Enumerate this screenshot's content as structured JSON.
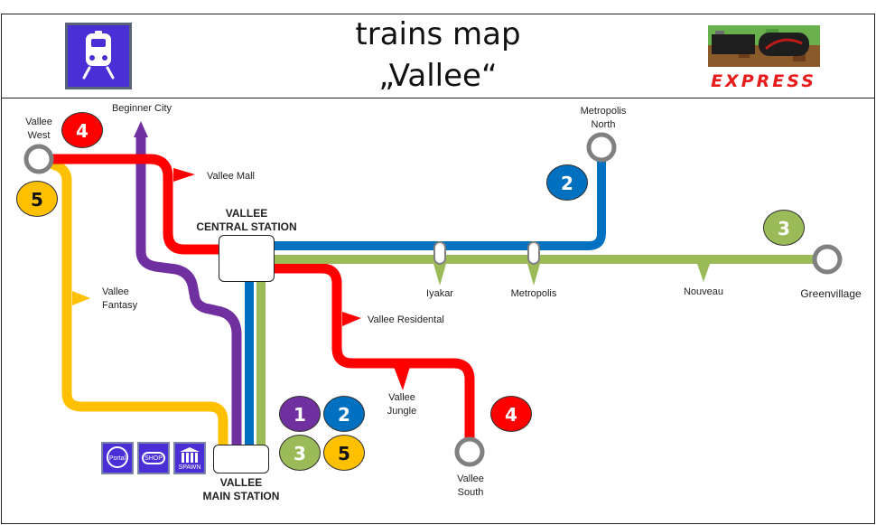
{
  "header": {
    "title_line1": "trains map",
    "title_line2": "„Vallee“",
    "brand_word": "EXPRESS"
  },
  "stations": {
    "vallee_west": "Vallee\nWest",
    "beginner_city": "Beginner City",
    "vallee_mall": "Vallee Mall",
    "central": "VALLEE\nCENTRAL STATION",
    "metropolis_north": "Metropolis\nNorth",
    "iyakar": "Iyakar",
    "metropolis": "Metropolis",
    "nouveau": "Nouveau",
    "greenvillage": "Greenvillage",
    "vallee_fantasy": "Vallee\nFantasy",
    "vallee_residental": "Vallee Residental",
    "vallee_jungle": "Vallee\nJungle",
    "vallee_south": "Vallee\nSouth",
    "main": "VALLEE\nMAIN STATION"
  },
  "badges": {
    "red_west": "4",
    "yellow_west": "5",
    "blue_north": "2",
    "green_east": "3",
    "red_south": "4",
    "main_purple": "1",
    "main_blue": "2",
    "main_green": "3",
    "main_yellow": "5"
  },
  "services": {
    "portal": "Portal",
    "shop": "SHOP",
    "spawn": "SPAWN"
  },
  "colors": {
    "red": "#ff0000",
    "blue": "#0070c0",
    "green": "#9bbb59",
    "yellow": "#ffc000",
    "purple": "#7030a0",
    "station_grey": "#808080",
    "service_blue": "#4a2fd6"
  }
}
